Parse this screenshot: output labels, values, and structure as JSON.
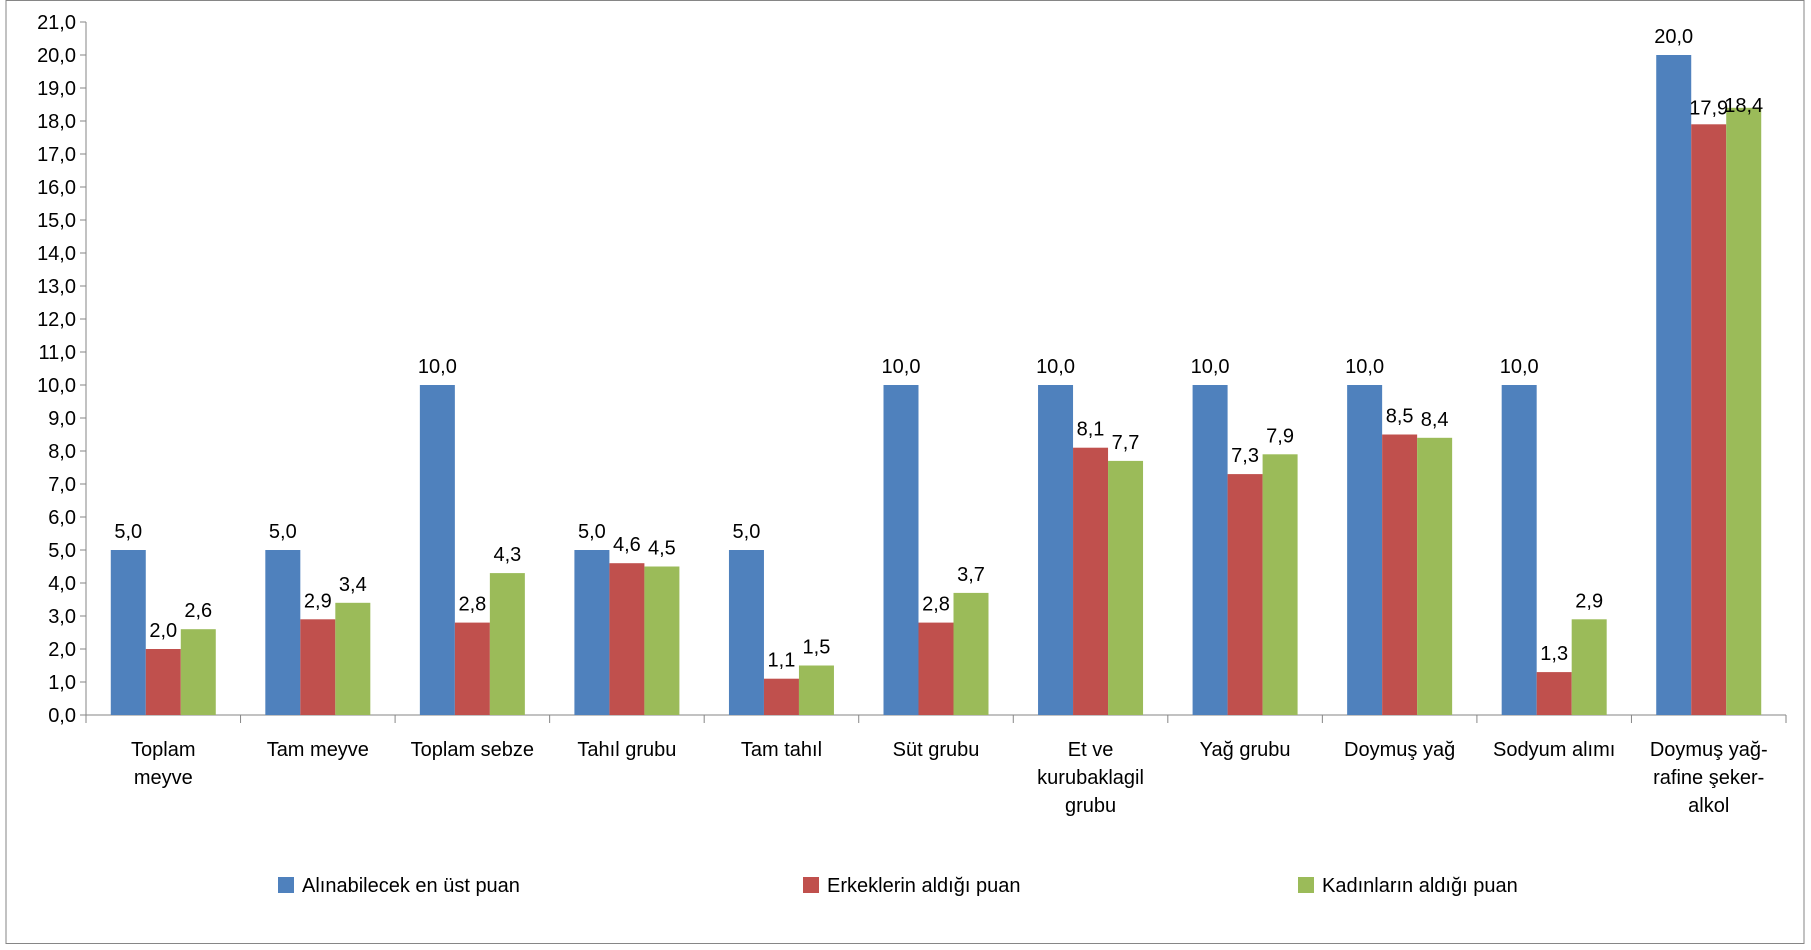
{
  "chart_data": {
    "type": "bar",
    "title": "",
    "xlabel": "",
    "ylabel": "",
    "ylim": [
      0,
      21
    ],
    "ytick_step": 1,
    "ytick_labels": [
      "0,0",
      "1,0",
      "2,0",
      "3,0",
      "4,0",
      "5,0",
      "6,0",
      "7,0",
      "8,0",
      "9,0",
      "10,0",
      "11,0",
      "12,0",
      "13,0",
      "14,0",
      "15,0",
      "16,0",
      "17,0",
      "18,0",
      "19,0",
      "20,0",
      "21,0"
    ],
    "grid": false,
    "legend_position": "bottom",
    "categories": [
      [
        "Toplam",
        "meyve"
      ],
      [
        "Tam meyve"
      ],
      [
        "Toplam sebze"
      ],
      [
        "Tahıl grubu"
      ],
      [
        "Tam tahıl"
      ],
      [
        "Süt grubu"
      ],
      [
        "Et ve",
        "kurubaklagil",
        "grubu"
      ],
      [
        "Yağ grubu"
      ],
      [
        "Doymuş yağ"
      ],
      [
        "Sodyum alımı"
      ],
      [
        "Doymuş yağ-",
        "rafine şeker-",
        "alkol"
      ]
    ],
    "series": [
      {
        "name": "Alınabilecek en üst puan",
        "color": "#4f81bd",
        "values": [
          5.0,
          5.0,
          10.0,
          5.0,
          5.0,
          10.0,
          10.0,
          10.0,
          10.0,
          10.0,
          20.0
        ],
        "labels": [
          "5,0",
          "5,0",
          "10,0",
          "5,0",
          "5,0",
          "10,0",
          "10,0",
          "10,0",
          "10,0",
          "10,0",
          "20,0"
        ]
      },
      {
        "name": "Erkeklerin aldığı puan",
        "color": "#c0504d",
        "values": [
          2.0,
          2.9,
          2.8,
          4.6,
          1.1,
          2.8,
          8.1,
          7.3,
          8.5,
          1.3,
          17.9
        ],
        "labels": [
          "2,0",
          "2,9",
          "2,8",
          "4,6",
          "1,1",
          "2,8",
          "8,1",
          "7,3",
          "8,5",
          "1,3",
          "17,9"
        ]
      },
      {
        "name": "Kadınların aldığı puan",
        "color": "#9bbb59",
        "values": [
          2.6,
          3.4,
          4.3,
          4.5,
          1.5,
          3.7,
          7.7,
          7.9,
          8.4,
          2.9,
          18.4
        ],
        "labels": [
          "2,6",
          "3,4",
          "4,3",
          "4,5",
          "1,5",
          "3,7",
          "7,7",
          "7,9",
          "8,4",
          "2,9",
          "18,4"
        ]
      }
    ]
  }
}
